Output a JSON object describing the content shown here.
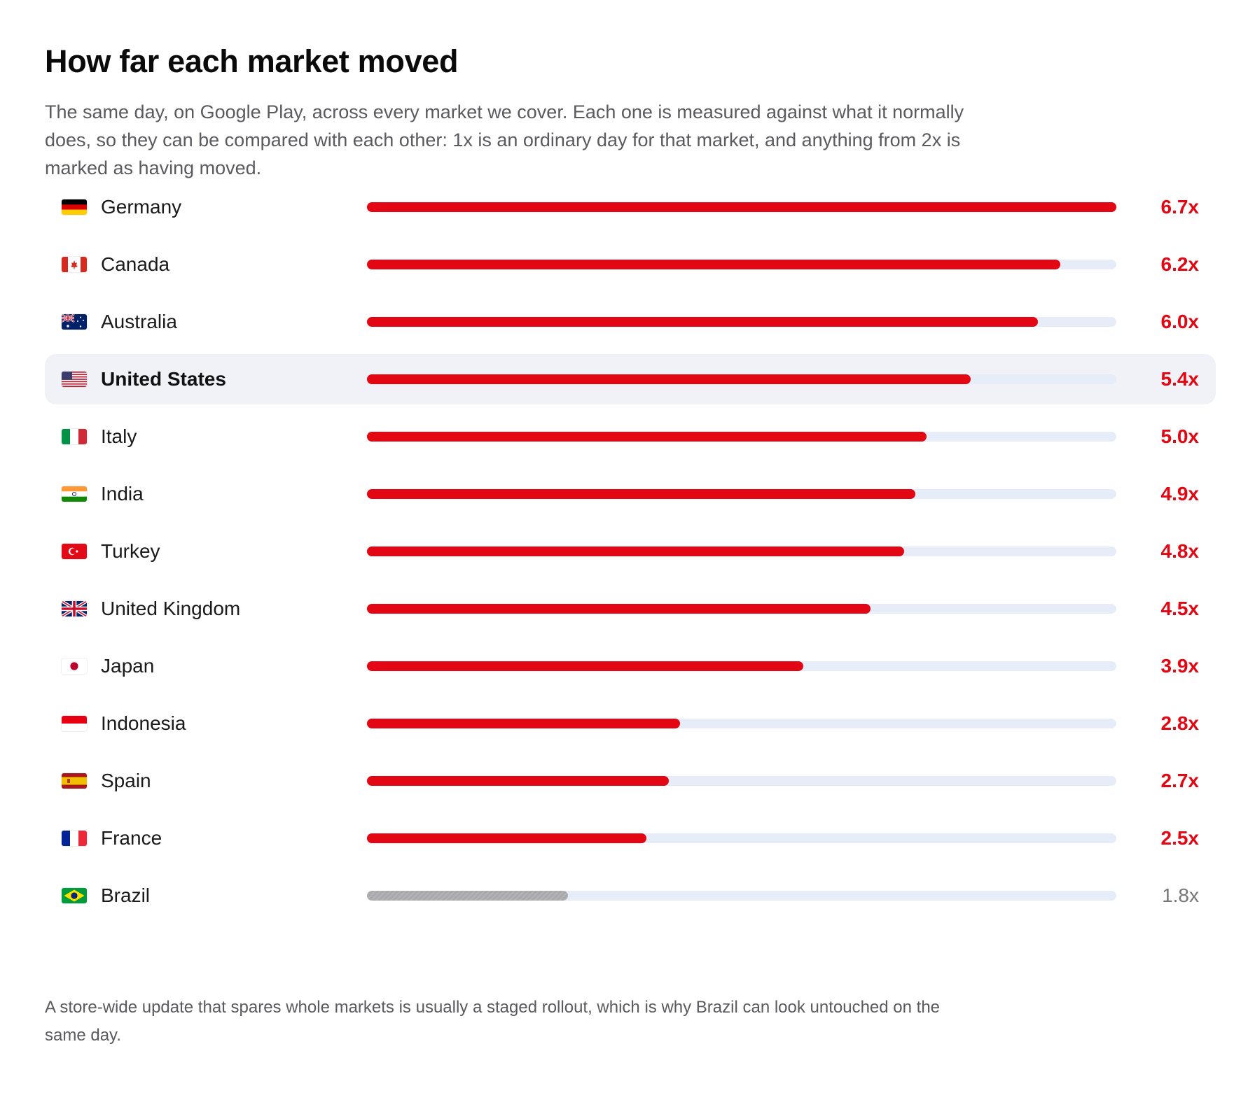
{
  "title": "How far each market moved",
  "subtitle": "The same day, on Google Play, across every market we cover. Each one is measured against what it normally does, so they can be compared with each other: 1x is an ordinary day for that market, and anything from 2x is marked as having moved.",
  "footnote": "A store-wide update that spares whole markets is usually a staged rollout, which is why Brazil can look untouched on the same day.",
  "colors": {
    "moved": "#e30613",
    "not_moved": "#a9a9ad",
    "track": "#e6edf9",
    "highlight_row": "#f1f2f7"
  },
  "chart_data": {
    "type": "bar",
    "orientation": "horizontal",
    "xlim": [
      0,
      6.7
    ],
    "threshold": 2,
    "highlighted": "United States",
    "categories": [
      "Germany",
      "Canada",
      "Australia",
      "United States",
      "Italy",
      "India",
      "Turkey",
      "United Kingdom",
      "Japan",
      "Indonesia",
      "Spain",
      "France",
      "Brazil"
    ],
    "flags": [
      "de-flag-icon",
      "ca-flag-icon",
      "au-flag-icon",
      "us-flag-icon",
      "it-flag-icon",
      "in-flag-icon",
      "tr-flag-icon",
      "gb-flag-icon",
      "jp-flag-icon",
      "id-flag-icon",
      "es-flag-icon",
      "fr-flag-icon",
      "br-flag-icon"
    ],
    "values": [
      6.7,
      6.2,
      6.0,
      5.4,
      5.0,
      4.9,
      4.8,
      4.5,
      3.9,
      2.8,
      2.7,
      2.5,
      1.8
    ],
    "value_labels": [
      "6.7x",
      "6.2x",
      "6.0x",
      "5.4x",
      "5.0x",
      "4.9x",
      "4.8x",
      "4.5x",
      "3.9x",
      "2.8x",
      "2.7x",
      "2.5x",
      "1.8x"
    ]
  }
}
